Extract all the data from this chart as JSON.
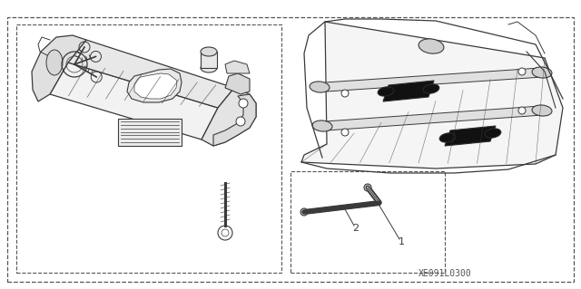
{
  "bg_color": "#ffffff",
  "line_color": "#3a3a3a",
  "footnote": "XE091L0300",
  "footnote_fontsize": 7,
  "label_fontsize": 8,
  "label1": "1",
  "label2": "2"
}
